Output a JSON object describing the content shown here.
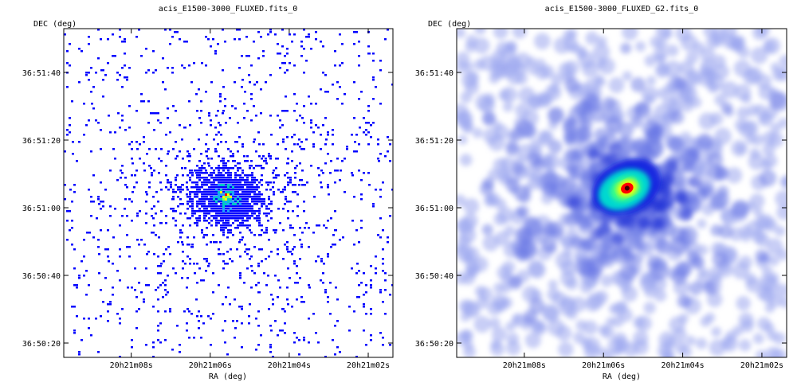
{
  "panels": [
    {
      "title": "acis_E1500-3000_FLUXED.fits_0",
      "ylabel": "DEC (deg)",
      "xlabel": "RA (deg)",
      "yticks": [
        "36:51:40",
        "36:51:20",
        "36:51:00",
        "36:50:40",
        "36:50:20"
      ],
      "xticks": [
        "20h21m08s",
        "20h21m06s",
        "20h21m04s",
        "20h21m02s"
      ],
      "image_style": "unsmoothed photon counts, blue scatter with green/red core",
      "source_center_frac": [
        0.49,
        0.51
      ]
    },
    {
      "title": "acis_E1500-3000_FLUXED_G2.fits_0",
      "ylabel": "DEC (deg)",
      "xlabel": "RA (deg)",
      "yticks": [
        "36:51:40",
        "36:51:20",
        "36:51:00",
        "36:50:40",
        "36:50:20"
      ],
      "xticks": [
        "20h21m08s",
        "20h21m06s",
        "20h21m04s",
        "20h21m02s"
      ],
      "image_style": "gaussian smoothed counts, light blue blobs with red core",
      "source_center_frac": [
        0.5,
        0.51
      ]
    }
  ],
  "colors": {
    "low": "#0000ff",
    "smooth_low": "#9aa6ee",
    "mid": "#00c8c8",
    "high": "#ffff00",
    "peak": "#ff0000",
    "core": "#400000"
  }
}
